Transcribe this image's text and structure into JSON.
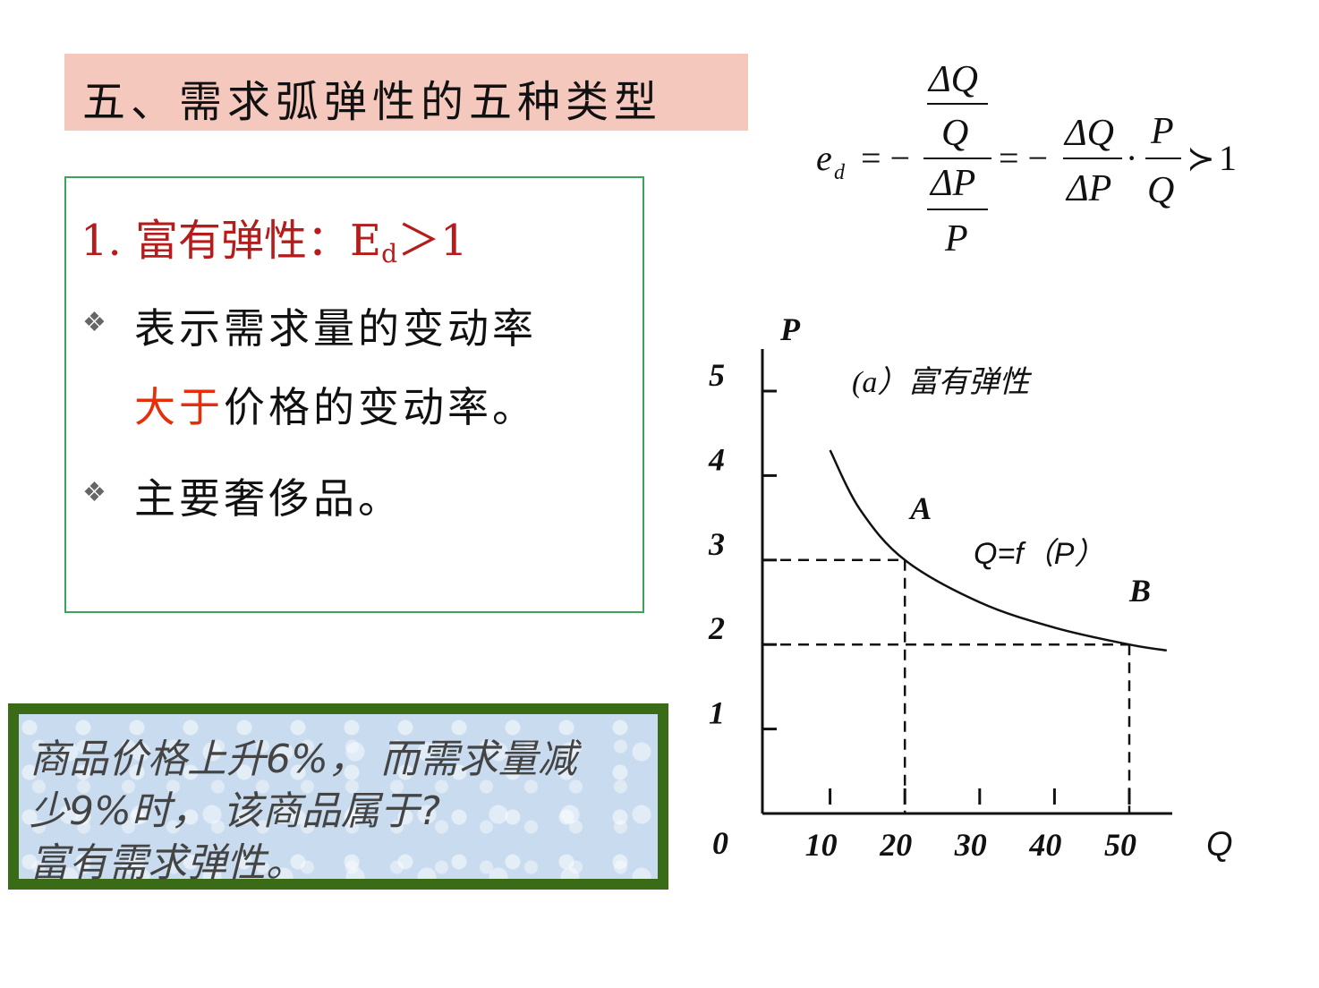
{
  "slide": {
    "title": "五、需求弧弹性的五种类型"
  },
  "content": {
    "heading_main": "1. 富有弹性：E",
    "heading_sub": "d",
    "heading_tail": "＞1",
    "bullet_symbol": "❖",
    "bullet1_line1": "表示需求量的变动率",
    "bullet1_line2_highlight": "大于",
    "bullet1_line2_rest": "价格的变动率。",
    "bullet2": "主要奢侈品。",
    "highlight_color": "#e62e0b",
    "heading_color": "#b51d1d"
  },
  "note": {
    "line1": "商品价格上升6%，  而需求量减",
    "line2": "少9%时，  该商品属于?",
    "line3": "富有需求弹性。"
  },
  "formula": {
    "lhs": "e",
    "lhs_sub": "d",
    "eq1": "= −",
    "dQ": "ΔQ",
    "Q": "Q",
    "dP": "ΔP",
    "P": "P",
    "eq2": "= −",
    "dot": "·",
    "succ": "≻",
    "one": "1"
  },
  "chart_data": {
    "type": "line",
    "title": "(a）富有弹性",
    "xlabel": "Q",
    "ylabel": "P",
    "origin_label": "0",
    "x_ticks": [
      "10",
      "20",
      "30",
      "40",
      "50"
    ],
    "y_ticks": [
      "1",
      "2",
      "3",
      "4",
      "5"
    ],
    "xlim": [
      0,
      55
    ],
    "ylim": [
      0,
      5.5
    ],
    "curve_label": "Q=f（P）",
    "series": [
      {
        "name": "",
        "x": [
          10,
          14,
          20,
          30,
          40,
          50,
          55
        ],
        "y": [
          4.3,
          3.6,
          3,
          2.5,
          2.2,
          2,
          1.93
        ]
      }
    ],
    "points": [
      {
        "label": "A",
        "x": 20,
        "y": 3
      },
      {
        "label": "B",
        "x": 50,
        "y": 2
      }
    ]
  }
}
